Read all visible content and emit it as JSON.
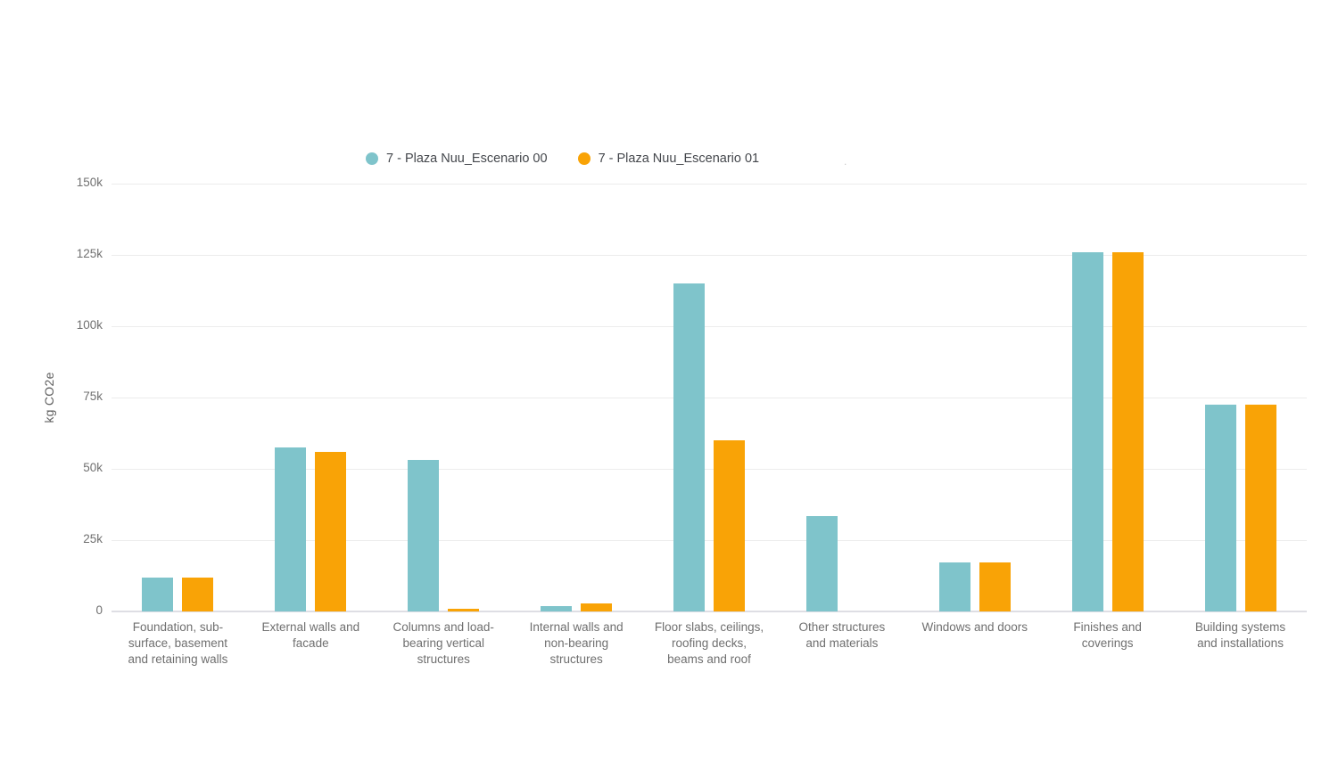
{
  "chart_data": {
    "type": "bar",
    "title": "",
    "xlabel": "",
    "ylabel": "kg CO2e",
    "ylim": [
      0,
      150000
    ],
    "ytick_labels": [
      "0",
      "25k",
      "50k",
      "75k",
      "100k",
      "125k",
      "150k"
    ],
    "grid": true,
    "legend_position": "top",
    "categories": [
      "Foundation, sub-surface, basement and retaining walls",
      "External walls and facade",
      "Columns and load-bearing vertical structures",
      "Internal walls and non-bearing structures",
      "Floor slabs, ceilings, roofing decks, beams and roof",
      "Other structures and materials",
      "Windows and doors",
      "Finishes and coverings",
      "Building systems and installations"
    ],
    "category_label_lines": [
      [
        "Foundation, sub-",
        "surface, basement",
        "and retaining walls"
      ],
      [
        "External walls and",
        "facade"
      ],
      [
        "Columns and load-",
        "bearing vertical",
        "structures"
      ],
      [
        "Internal walls and",
        "non-bearing",
        "structures"
      ],
      [
        "Floor slabs, ceilings,",
        "roofing decks,",
        "beams and roof"
      ],
      [
        "Other structures",
        "and materials"
      ],
      [
        "Windows and doors"
      ],
      [
        "Finishes and",
        "coverings"
      ],
      [
        "Building systems",
        "and installations"
      ]
    ],
    "series": [
      {
        "name": "7 - Plaza Nuu_Escenario 00",
        "color": "#7FC4CB",
        "values": [
          12000,
          57500,
          53000,
          2000,
          115000,
          33500,
          17200,
          126000,
          72500
        ]
      },
      {
        "name": "7 - Plaza Nuu_Escenario 01",
        "color": "#F9A306",
        "values": [
          12000,
          56000,
          1000,
          2800,
          60000,
          0,
          17200,
          126000,
          72500
        ]
      }
    ]
  },
  "misc": {
    "stray_dot": "."
  }
}
